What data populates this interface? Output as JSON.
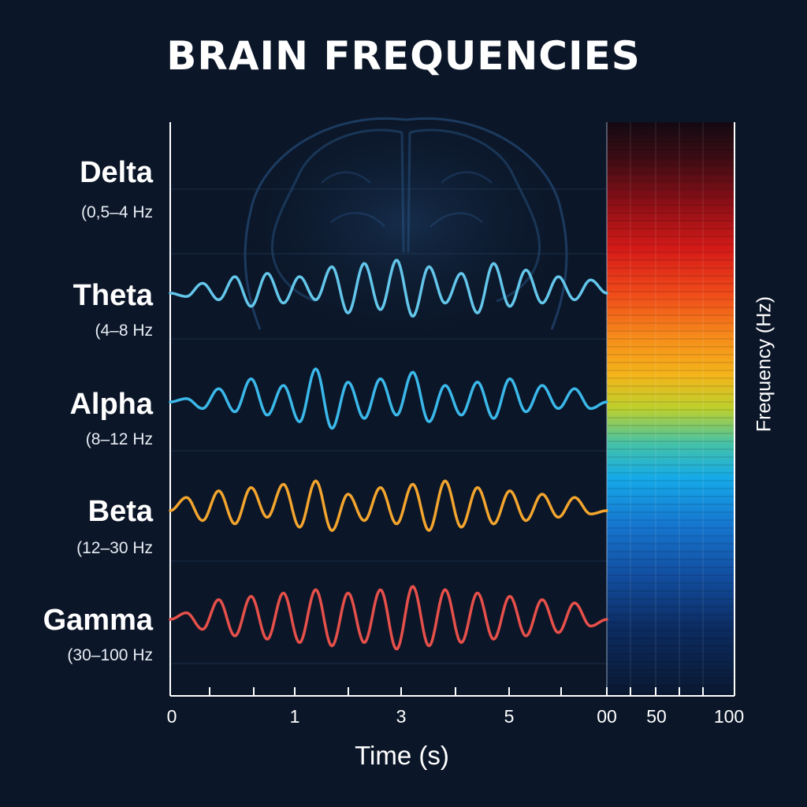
{
  "title": "BRAIN FREQUENCIES",
  "chart_data": [
    {
      "type": "line",
      "title": "BRAIN FREQUENCIES",
      "xlabel": "Time (s)",
      "x_ticks": [
        "0",
        "1",
        "3",
        "5",
        "00"
      ],
      "grid": true,
      "series": [
        {
          "name": "Delta",
          "range": "(0,5–4 Hz",
          "color": "#4da3d9",
          "amplitude": 0,
          "values": []
        },
        {
          "name": "Theta",
          "range": "(4–8 Hz",
          "color": "#63c6ea",
          "amplitude": 1,
          "values": [
            0,
            -0.1,
            0.3,
            -0.2,
            0.5,
            -0.4,
            0.6,
            -0.3,
            0.5,
            -0.2,
            0.8,
            -0.6,
            0.9,
            -0.5,
            1.0,
            -0.7,
            0.8,
            -0.3,
            0.6,
            -0.6,
            0.9,
            -0.4,
            0.7,
            -0.3,
            0.5,
            -0.2,
            0.4,
            0
          ]
        },
        {
          "name": "Alpha",
          "range": "(8–12 Hz",
          "color": "#3bb8ea",
          "amplitude": 1,
          "values": [
            0,
            0.1,
            -0.2,
            0.4,
            -0.3,
            0.7,
            -0.4,
            0.5,
            -0.6,
            1.0,
            -0.8,
            0.6,
            -0.5,
            0.7,
            -0.4,
            0.9,
            -0.6,
            0.5,
            -0.4,
            0.6,
            -0.5,
            0.7,
            -0.3,
            0.5,
            -0.2,
            0.4,
            -0.2,
            0
          ]
        },
        {
          "name": "Beta",
          "range": "(12–30 Hz",
          "color": "#f3a52e",
          "amplitude": 1,
          "values": [
            0,
            0.4,
            -0.3,
            0.6,
            -0.4,
            0.7,
            -0.2,
            0.8,
            -0.5,
            0.9,
            -0.6,
            0.5,
            -0.3,
            0.7,
            -0.4,
            0.8,
            -0.6,
            0.9,
            -0.5,
            0.7,
            -0.4,
            0.6,
            -0.3,
            0.5,
            -0.2,
            0.4,
            -0.1,
            0
          ]
        },
        {
          "name": "Gamma",
          "range": "(30–100 Hz",
          "color": "#e6504a",
          "amplitude": 1,
          "values": [
            0,
            0.2,
            -0.3,
            0.6,
            -0.5,
            0.7,
            -0.6,
            0.8,
            -0.7,
            0.9,
            -0.8,
            0.8,
            -0.7,
            0.9,
            -0.9,
            1.0,
            -0.8,
            0.9,
            -0.7,
            0.8,
            -0.6,
            0.7,
            -0.5,
            0.6,
            -0.4,
            0.5,
            -0.2,
            0
          ]
        }
      ]
    },
    {
      "type": "heatmap",
      "ylabel": "Frequency (Hz)",
      "x_ticks": [
        "50",
        "100"
      ],
      "colorscale": [
        "#1a0a12",
        "#6e0f12",
        "#b0101a",
        "#ee2a1a",
        "#f5741a",
        "#f6a51b",
        "#f2c51a",
        "#b7d030",
        "#49c0a0",
        "#17a9e6",
        "#1877d0",
        "#134fa0",
        "#0c2e66",
        "#0a1b3a",
        "#0a1628"
      ]
    }
  ]
}
